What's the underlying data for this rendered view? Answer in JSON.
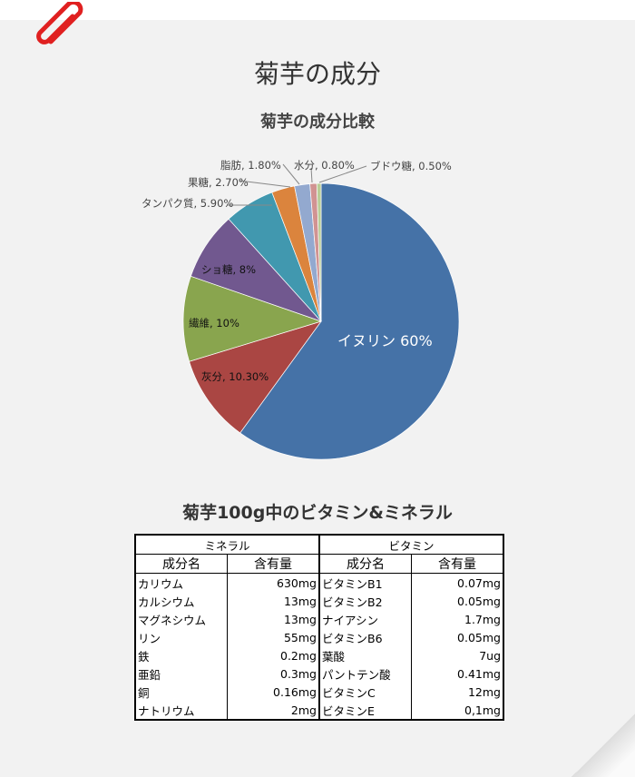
{
  "title": "菊芋の成分",
  "chart_data": {
    "type": "pie",
    "title": "菊芋の成分比較",
    "slices": [
      {
        "label": "イヌリン",
        "text": "イヌリン 60%",
        "value": 60,
        "color": "#4572a7"
      },
      {
        "label": "灰分",
        "text": "灰分, 10.30%",
        "value": 10.3,
        "color": "#aa4643"
      },
      {
        "label": "繊維",
        "text": "繊維, 10%",
        "value": 10,
        "color": "#89a54e"
      },
      {
        "label": "ショ糖",
        "text": "ショ糖, 8%",
        "value": 8,
        "color": "#71588f"
      },
      {
        "label": "タンパク質",
        "text": "タンパク質, 5.90%",
        "value": 5.9,
        "color": "#4198af"
      },
      {
        "label": "果糖",
        "text": "果糖, 2.70%",
        "value": 2.7,
        "color": "#db843d"
      },
      {
        "label": "脂肪",
        "text": "脂肪, 1.80%",
        "value": 1.8,
        "color": "#93a9cf"
      },
      {
        "label": "水分",
        "text": "水分, 0.80%",
        "value": 0.8,
        "color": "#d19392"
      },
      {
        "label": "ブドウ糖",
        "text": "ブドウ糖, 0.50%",
        "value": 0.5,
        "color": "#b9cd96"
      }
    ]
  },
  "table": {
    "title": "菊芋100g中のビタミン&ミネラル",
    "groups": [
      "ミネラル",
      "ビタミン"
    ],
    "headers": [
      "成分名",
      "含有量",
      "成分名",
      "含有量"
    ],
    "rows": [
      [
        "カリウム",
        "630mg",
        "ビタミンB1",
        "0.07mg"
      ],
      [
        "カルシウム",
        "13mg",
        "ビタミンB2",
        "0.05mg"
      ],
      [
        "マグネシウム",
        "13mg",
        "ナイアシン",
        "1.7mg"
      ],
      [
        "リン",
        "55mg",
        "ビタミンB6",
        "0.05mg"
      ],
      [
        "鉄",
        "0.2mg",
        "葉酸",
        "7ug"
      ],
      [
        "亜鉛",
        "0.3mg",
        "パントテン酸",
        "0.41mg"
      ],
      [
        "銅",
        "0.16mg",
        "ビタミンC",
        "12mg"
      ],
      [
        "ナトリウム",
        "2mg",
        "ビタミンE",
        "0,1mg"
      ]
    ]
  }
}
